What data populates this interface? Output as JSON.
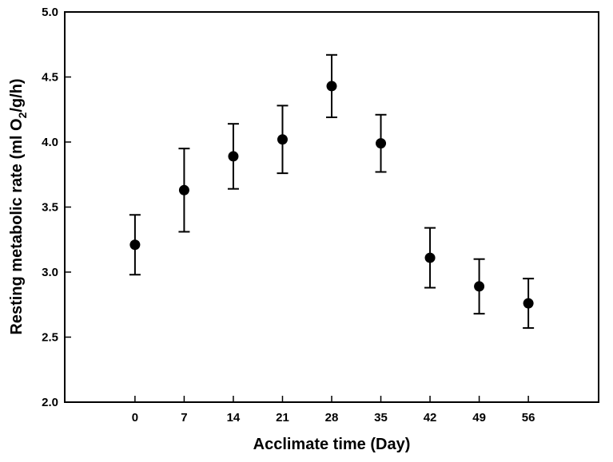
{
  "chart_data": {
    "type": "scatter",
    "title": "",
    "xlabel": "Acclimate time (Day)",
    "ylabel_main": "Resting metabolic rate  (ml O",
    "ylabel_sub": "2",
    "ylabel_tail": "/g/h)",
    "xlim": [
      -10,
      66
    ],
    "ylim": [
      2.0,
      5.0
    ],
    "x_ticks": [
      "0",
      "7",
      "14",
      "21",
      "28",
      "35",
      "42",
      "49",
      "56"
    ],
    "x_tick_values": [
      0,
      7,
      14,
      21,
      28,
      35,
      42,
      49,
      56
    ],
    "y_ticks": [
      "2.0",
      "2.5",
      "3.0",
      "3.5",
      "4.0",
      "4.5",
      "5.0"
    ],
    "y_tick_values": [
      2.0,
      2.5,
      3.0,
      3.5,
      4.0,
      4.5,
      5.0
    ],
    "grid": false,
    "legend": "none",
    "series": [
      {
        "x": [
          0,
          7,
          14,
          21,
          28,
          35,
          42,
          49,
          56
        ],
        "y": [
          3.21,
          3.63,
          3.89,
          4.02,
          4.43,
          3.99,
          3.11,
          2.89,
          2.76
        ],
        "err_low": [
          2.98,
          3.31,
          3.64,
          3.76,
          4.19,
          3.77,
          2.88,
          2.68,
          2.57
        ],
        "err_high": [
          3.44,
          3.95,
          4.14,
          4.28,
          4.67,
          4.21,
          3.34,
          3.1,
          2.95
        ]
      }
    ],
    "colors": {
      "marker": "#000000",
      "axis": "#000000",
      "background": "#ffffff"
    }
  }
}
